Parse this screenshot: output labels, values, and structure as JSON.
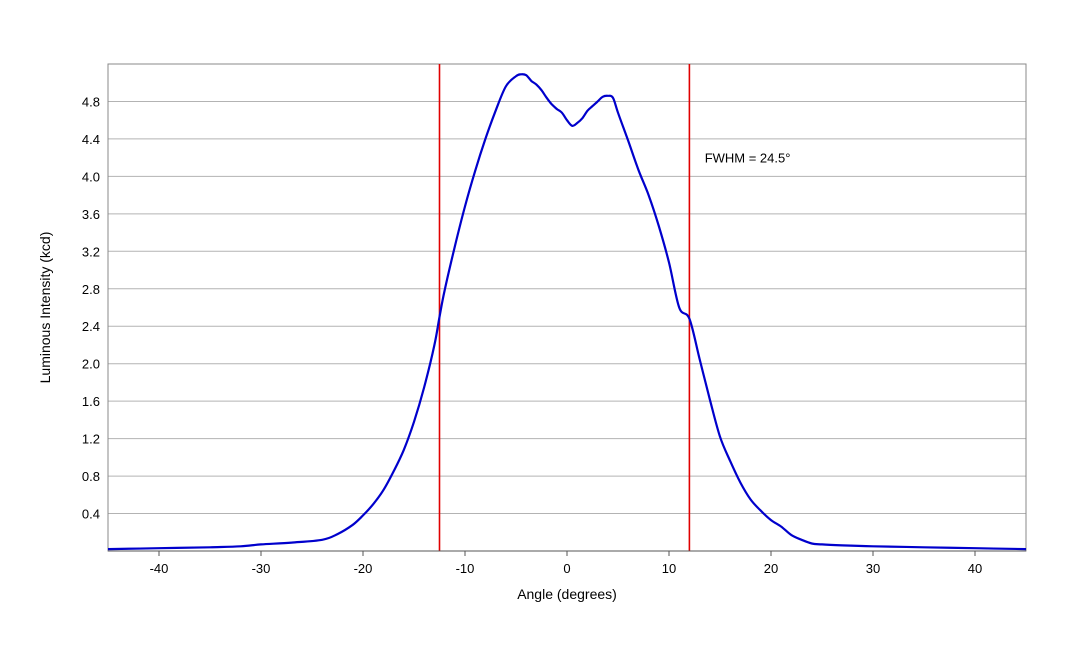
{
  "chart_data": {
    "type": "line",
    "title": "",
    "xlabel": "Angle (degrees)",
    "ylabel": "Luminous Intensity (kcd)",
    "xlim": [
      -45,
      45
    ],
    "ylim": [
      0,
      5.2
    ],
    "grid": true,
    "x_ticks": [
      -40,
      -30,
      -20,
      -10,
      0,
      10,
      20,
      30,
      40
    ],
    "x_tick_labels": [
      "-40",
      "-30",
      "-20",
      "-10",
      "0",
      "10",
      "20",
      "30",
      "40"
    ],
    "y_ticks": [
      0.4,
      0.8,
      1.2,
      1.6,
      2.0,
      2.4,
      2.8,
      3.2,
      3.6,
      4.0,
      4.4,
      4.8
    ],
    "y_tick_labels": [
      "0.4",
      "0.8",
      "1.2",
      "1.6",
      "2.0",
      "2.4",
      "2.8",
      "3.2",
      "3.6",
      "4.0",
      "4.4",
      "4.8"
    ],
    "series": [
      {
        "color": "#0000cc",
        "x": [
          -45,
          -40,
          -35,
          -32,
          -30,
          -27,
          -24,
          -22.5,
          -21,
          -20,
          -19,
          -18,
          -17,
          -16,
          -15,
          -14,
          -13,
          -12.5,
          -12,
          -11,
          -10,
          -9,
          -8,
          -7,
          -6,
          -5,
          -4.5,
          -4,
          -3.5,
          -3,
          -2.5,
          -2,
          -1.5,
          -1,
          -0.5,
          0,
          0.5,
          1,
          1.5,
          2,
          2.5,
          3,
          3.5,
          4,
          4.5,
          5,
          6,
          7,
          8,
          9,
          10,
          11,
          12,
          13,
          14,
          15,
          16,
          17,
          18,
          19,
          20,
          21,
          22,
          23,
          24,
          25,
          27,
          30,
          35,
          40,
          45
        ],
        "y": [
          0.02,
          0.03,
          0.04,
          0.05,
          0.07,
          0.09,
          0.12,
          0.18,
          0.28,
          0.38,
          0.5,
          0.65,
          0.85,
          1.08,
          1.38,
          1.75,
          2.2,
          2.5,
          2.78,
          3.25,
          3.68,
          4.06,
          4.4,
          4.7,
          4.96,
          5.07,
          5.09,
          5.08,
          5.02,
          4.98,
          4.92,
          4.84,
          4.77,
          4.72,
          4.68,
          4.6,
          4.54,
          4.57,
          4.62,
          4.7,
          4.75,
          4.8,
          4.85,
          4.86,
          4.84,
          4.68,
          4.38,
          4.07,
          3.8,
          3.47,
          3.08,
          2.6,
          2.48,
          2.05,
          1.62,
          1.22,
          0.96,
          0.73,
          0.55,
          0.43,
          0.33,
          0.26,
          0.17,
          0.12,
          0.08,
          0.07,
          0.06,
          0.05,
          0.04,
          0.03,
          0.02
        ]
      }
    ],
    "reference_lines": [
      {
        "x": -12.5,
        "color": "#e00000"
      },
      {
        "x": 12,
        "color": "#e00000"
      }
    ],
    "annotations": [
      {
        "text": "FWHM = 24.5°",
        "x": 13.5,
        "y": 4.15
      }
    ]
  }
}
